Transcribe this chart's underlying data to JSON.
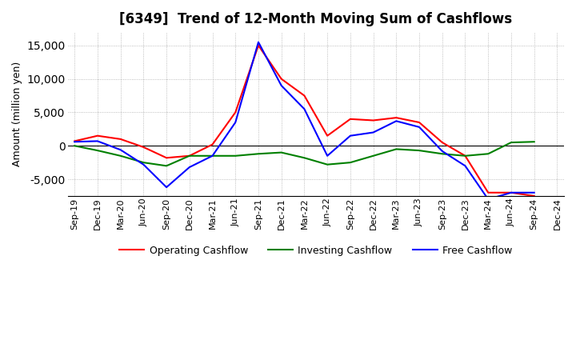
{
  "title": "[6349]  Trend of 12-Month Moving Sum of Cashflows",
  "ylabel": "Amount (million yen)",
  "xlabels": [
    "Sep-19",
    "Dec-19",
    "Mar-20",
    "Jun-20",
    "Sep-20",
    "Dec-20",
    "Mar-21",
    "Jun-21",
    "Sep-21",
    "Dec-21",
    "Mar-22",
    "Jun-22",
    "Sep-22",
    "Dec-22",
    "Mar-23",
    "Jun-23",
    "Sep-23",
    "Dec-23",
    "Mar-24",
    "Jun-24",
    "Sep-24",
    "Dec-24"
  ],
  "operating": [
    700,
    1500,
    1000,
    -200,
    -1800,
    -1500,
    200,
    5000,
    15000,
    10000,
    7500,
    1500,
    4000,
    3800,
    4200,
    3500,
    500,
    -1500,
    -7000,
    -7000,
    -7500,
    null
  ],
  "investing": [
    0,
    -700,
    -1500,
    -2500,
    -3000,
    -1500,
    -1500,
    -1500,
    -1200,
    -1000,
    -1800,
    -2800,
    -2500,
    -1500,
    -500,
    -700,
    -1200,
    -1500,
    -1200,
    500,
    600,
    null
  ],
  "free": [
    600,
    700,
    -600,
    -2800,
    -6200,
    -3200,
    -1500,
    3500,
    15500,
    9000,
    5500,
    -1500,
    1500,
    2000,
    3700,
    2800,
    -800,
    -3000,
    -8000,
    -7000,
    -7000,
    null
  ],
  "ylim": [
    -7500,
    17000
  ],
  "yticks": [
    -5000,
    0,
    5000,
    10000,
    15000
  ],
  "operating_color": "#ff0000",
  "investing_color": "#008000",
  "free_color": "#0000ff",
  "background_color": "#ffffff",
  "grid_color": "#aaaaaa",
  "title_fontsize": 12,
  "axis_fontsize": 8,
  "ylabel_fontsize": 9
}
